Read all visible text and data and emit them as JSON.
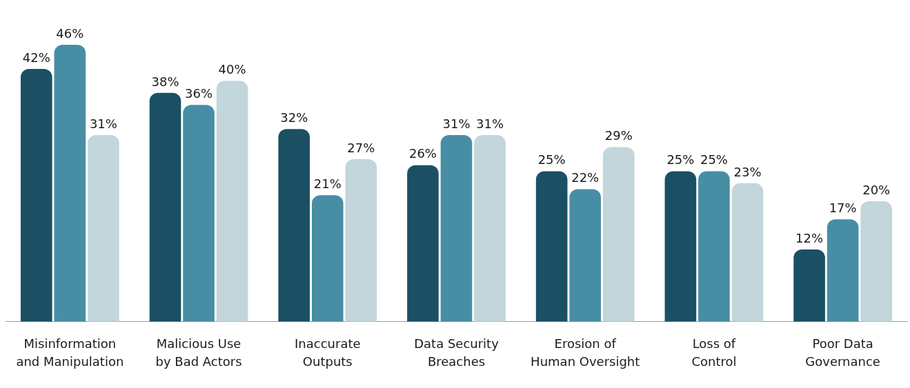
{
  "chart_data": {
    "type": "bar",
    "categories": [
      "Misinformation and Manipulation",
      "Malicious Use by Bad Actors",
      "Inaccurate Outputs",
      "Data Security Breaches",
      "Erosion of Human Oversight",
      "Loss of Control",
      "Poor Data Governance"
    ],
    "series": [
      {
        "color": "#1b5064",
        "values": [
          42,
          38,
          32,
          26,
          25,
          25,
          12
        ],
        "value_labels": [
          "42%",
          "38%",
          "32%",
          "26%",
          "25%",
          "25%",
          "12%"
        ]
      },
      {
        "color": "#478ea5",
        "values": [
          46,
          36,
          21,
          31,
          22,
          25,
          17
        ],
        "value_labels": [
          "46%",
          "36%",
          "21%",
          "31%",
          "22%",
          "25%",
          "17%"
        ]
      },
      {
        "color": "#c2d6dc",
        "values": [
          31,
          40,
          27,
          31,
          29,
          23,
          20
        ],
        "value_labels": [
          "31%",
          "40%",
          "27%",
          "31%",
          "29%",
          "23%",
          "20%"
        ]
      }
    ],
    "tick_labels": "x",
    "grid": false,
    "legend": false
  }
}
